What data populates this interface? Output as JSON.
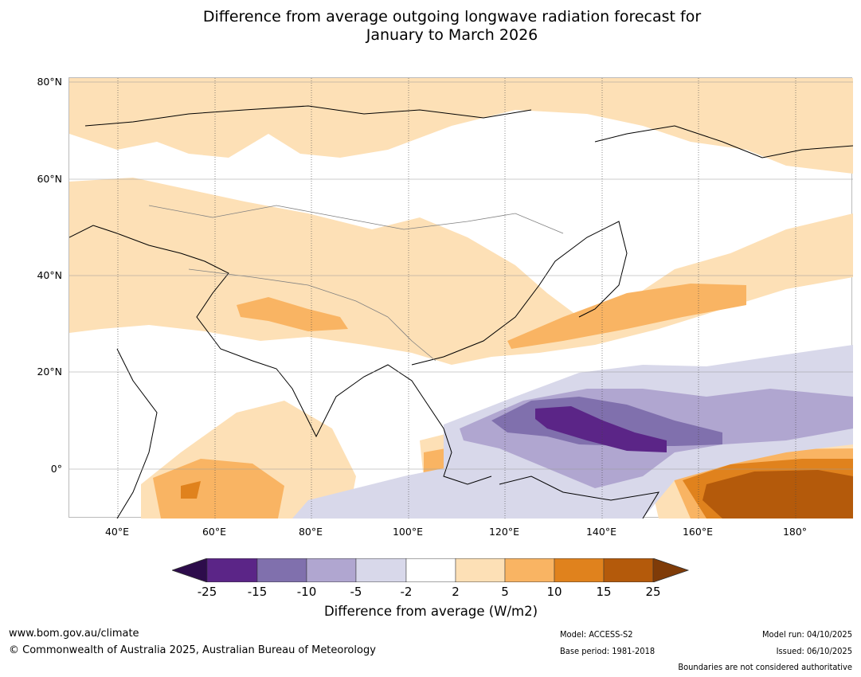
{
  "title": {
    "line1": "Difference from average outgoing longwave radiation forecast for",
    "line2": "January to March 2026"
  },
  "map": {
    "lat_labels": [
      "80°N",
      "60°N",
      "40°N",
      "20°N",
      "0°"
    ],
    "lon_labels": [
      "40°E",
      "60°E",
      "80°E",
      "100°E",
      "120°E",
      "140°E",
      "160°E",
      "180°"
    ],
    "land_color": "#ffffff",
    "coastline_color": "#000000",
    "border_color": "#808080"
  },
  "colorbar": {
    "tick_labels": [
      "-25",
      "-15",
      "-10",
      "-5",
      "-2",
      "2",
      "5",
      "10",
      "15",
      "25"
    ],
    "colors": [
      "#2d0c4b",
      "#5b2587",
      "#8070ad",
      "#b0a6d0",
      "#d8d8ea",
      "#ffffff",
      "#fde0b6",
      "#f9b463",
      "#e0821d",
      "#b45a0b",
      "#7f3b08"
    ],
    "title": "Difference from average (W/m2)"
  },
  "footer": {
    "website": "www.bom.gov.au/climate",
    "copyright": "© Commonwealth of Australia 2025, Australian Bureau of Meteorology",
    "model": "Model: ACCESS-S2",
    "base_period": "Base period: 1981-2018",
    "model_run": "Model run: 04/10/2025",
    "issued": "Issued: 06/10/2025",
    "disclaimer": "Boundaries are not considered authoritative"
  }
}
